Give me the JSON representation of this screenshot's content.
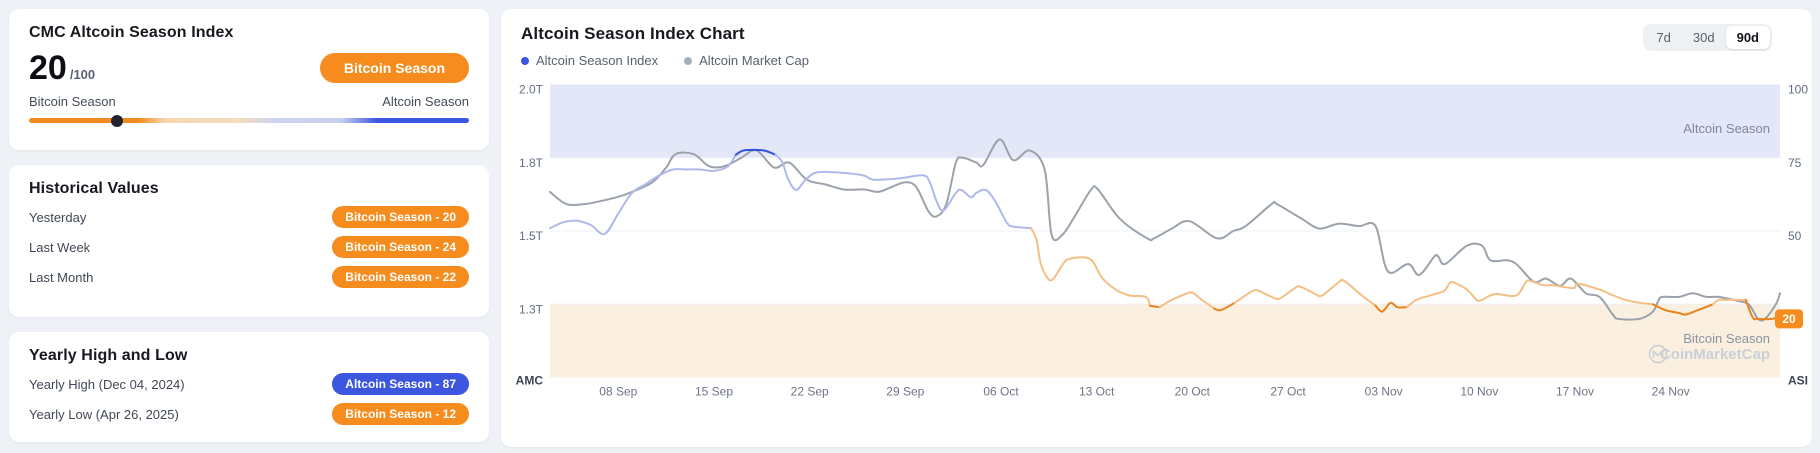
{
  "index_card": {
    "title": "CMC Altcoin Season Index",
    "score": "20",
    "score_max": "/100",
    "season_badge": "Bitcoin Season",
    "left_label": "Bitcoin Season",
    "right_label": "Altcoin Season",
    "slider_value": 20
  },
  "historical_card": {
    "title": "Historical Values",
    "rows": [
      {
        "label": "Yesterday",
        "badge": "Bitcoin Season - 20",
        "type": "bitcoin"
      },
      {
        "label": "Last Week",
        "badge": "Bitcoin Season - 24",
        "type": "bitcoin"
      },
      {
        "label": "Last Month",
        "badge": "Bitcoin Season - 22",
        "type": "bitcoin"
      }
    ]
  },
  "yearly_card": {
    "title": "Yearly High and Low",
    "rows": [
      {
        "label": "Yearly High (Dec 04, 2024)",
        "badge": "Altcoin Season - 87",
        "type": "altcoin"
      },
      {
        "label": "Yearly Low (Apr 26, 2025)",
        "badge": "Bitcoin Season - 12",
        "type": "bitcoin"
      }
    ]
  },
  "chart_card": {
    "title": "Altcoin Season Index Chart",
    "legend": [
      {
        "label": "Altcoin Season Index",
        "color": "#3A56DE"
      },
      {
        "label": "Altcoin Market Cap",
        "color": "#A5AFBC"
      }
    ],
    "ranges": [
      {
        "label": "7d",
        "active": false
      },
      {
        "label": "30d",
        "active": false
      },
      {
        "label": "90d",
        "active": true
      }
    ]
  },
  "chart_data": {
    "type": "line",
    "title": "Altcoin Season Index Chart",
    "x_ticks": [
      "08 Sep",
      "15 Sep",
      "22 Sep",
      "29 Sep",
      "06 Oct",
      "13 Oct",
      "20 Oct",
      "27 Oct",
      "03 Nov",
      "10 Nov",
      "17 Nov",
      "24 Nov"
    ],
    "x_tick_days": [
      5,
      12,
      19,
      26,
      33,
      40,
      47,
      54,
      61,
      68,
      75,
      82
    ],
    "x_range_days": [
      0,
      90
    ],
    "left_axis": {
      "name": "AMC",
      "ticks": [
        {
          "label": "2.0T",
          "amc": 2.0
        },
        {
          "label": "1.8T",
          "amc": 1.8
        },
        {
          "label": "1.5T",
          "amc": 1.5
        },
        {
          "label": "1.3T",
          "amc": 1.3
        }
      ]
    },
    "right_axis": {
      "name": "ASI",
      "ticks": [
        100,
        75,
        50
      ],
      "ylim": [
        0,
        100
      ],
      "current": {
        "label": "20",
        "value": 20,
        "color": "#F68C1E"
      }
    },
    "bands": [
      {
        "label": "Altcoin Season",
        "from": 75,
        "to": 100,
        "color": "#E4E7F8",
        "label_color": "#7E8799"
      },
      {
        "label": "Bitcoin Season",
        "from": 0,
        "to": 25,
        "color": "#FBF0E0",
        "label_color": "#8A93A3"
      }
    ],
    "grid_levels": [
      75,
      50,
      25
    ],
    "watermark": {
      "brand": "CoinMarketCap",
      "color": "#C9CED7"
    },
    "series": [
      {
        "name": "Altcoin Season Index",
        "axis": "right",
        "colors": {
          "altseason": "#2E52DE",
          "neutral_high": "#AEB9EB",
          "neutral_low": "#F4BF85",
          "btcseason": "#E8821A"
        },
        "points": [
          [
            0,
            51
          ],
          [
            1,
            53
          ],
          [
            2,
            53.5
          ],
          [
            3,
            52
          ],
          [
            4,
            49
          ],
          [
            5,
            56
          ],
          [
            6,
            63
          ],
          [
            7,
            66
          ],
          [
            8,
            69
          ],
          [
            9,
            71
          ],
          [
            10,
            71
          ],
          [
            11,
            71
          ],
          [
            12,
            70.5
          ],
          [
            13,
            72
          ],
          [
            13.6,
            76
          ],
          [
            14.2,
            77.5
          ],
          [
            15.6,
            77.5
          ],
          [
            16.5,
            76
          ],
          [
            17,
            73.5
          ],
          [
            17.4,
            68
          ],
          [
            18,
            64
          ],
          [
            18.7,
            67.5
          ],
          [
            19.5,
            70
          ],
          [
            21,
            70
          ],
          [
            22.9,
            69
          ],
          [
            23.7,
            67.5
          ],
          [
            25.6,
            68
          ],
          [
            27.3,
            69
          ],
          [
            27.8,
            66.5
          ],
          [
            28.3,
            60
          ],
          [
            28.8,
            57
          ],
          [
            29.7,
            63
          ],
          [
            30.1,
            64
          ],
          [
            30.8,
            61.5
          ],
          [
            31.2,
            63
          ],
          [
            31.9,
            64
          ],
          [
            32.6,
            60
          ],
          [
            33.4,
            53
          ],
          [
            33.9,
            51.5
          ],
          [
            35.2,
            51
          ],
          [
            35.6,
            47
          ],
          [
            35.9,
            39
          ],
          [
            36.4,
            34
          ],
          [
            36.8,
            33.5
          ],
          [
            37.5,
            38.5
          ],
          [
            38,
            40.5
          ],
          [
            39.5,
            40.5
          ],
          [
            40.4,
            34
          ],
          [
            41.4,
            30
          ],
          [
            42.4,
            28
          ],
          [
            43.6,
            27.5
          ],
          [
            43.9,
            24.5
          ],
          [
            44.6,
            24
          ],
          [
            45.5,
            26.5
          ],
          [
            46.5,
            28.5
          ],
          [
            47,
            29
          ],
          [
            47.7,
            26.5
          ],
          [
            48.6,
            23.5
          ],
          [
            49.1,
            23
          ],
          [
            50.1,
            25.5
          ],
          [
            51.4,
            29.5
          ],
          [
            51.9,
            29.5
          ],
          [
            52.8,
            27.5
          ],
          [
            53.4,
            27
          ],
          [
            54.5,
            30.5
          ],
          [
            54.9,
            31
          ],
          [
            56,
            28.5
          ],
          [
            56.5,
            28
          ],
          [
            57.7,
            32.5
          ],
          [
            58.1,
            33
          ],
          [
            59.4,
            28
          ],
          [
            60.4,
            24.5
          ],
          [
            60.9,
            22.5
          ],
          [
            61.5,
            25.5
          ],
          [
            62,
            24
          ],
          [
            62.7,
            24
          ],
          [
            63.4,
            26.5
          ],
          [
            64.4,
            28
          ],
          [
            65.4,
            29.5
          ],
          [
            65.8,
            32
          ],
          [
            66.1,
            32.5
          ],
          [
            67.1,
            30
          ],
          [
            67.8,
            26.5
          ],
          [
            68.2,
            26.5
          ],
          [
            68.8,
            28
          ],
          [
            69.3,
            28.5
          ],
          [
            70.7,
            28
          ],
          [
            71.4,
            32.5
          ],
          [
            71.7,
            33
          ],
          [
            72.7,
            31.5
          ],
          [
            73.4,
            31.5
          ],
          [
            74.9,
            30.5
          ],
          [
            75.2,
            32
          ],
          [
            76.8,
            30
          ],
          [
            77.8,
            28
          ],
          [
            78.7,
            26.5
          ],
          [
            79.7,
            25.5
          ],
          [
            80.7,
            25
          ],
          [
            81.6,
            23
          ],
          [
            82.6,
            22
          ],
          [
            83.1,
            21.5
          ],
          [
            84,
            23
          ],
          [
            85.1,
            25
          ],
          [
            85.5,
            26.5
          ],
          [
            86,
            26.5
          ],
          [
            87.5,
            26.5
          ],
          [
            88,
            20.5
          ],
          [
            88.4,
            20
          ],
          [
            89.4,
            20
          ],
          [
            90,
            21
          ]
        ]
      },
      {
        "name": "Altcoin Market Cap",
        "axis": "left",
        "color": "#9BA2AC",
        "points": [
          [
            0,
            1.66
          ],
          [
            1.2,
            1.61
          ],
          [
            2.5,
            1.61
          ],
          [
            3.5,
            1.62
          ],
          [
            5,
            1.64
          ],
          [
            6,
            1.66
          ],
          [
            7.5,
            1.7
          ],
          [
            8.5,
            1.76
          ],
          [
            9.2,
            1.81
          ],
          [
            10.5,
            1.81
          ],
          [
            11.5,
            1.77
          ],
          [
            12.2,
            1.76
          ],
          [
            13,
            1.77
          ],
          [
            14,
            1.8
          ],
          [
            15.1,
            1.82
          ],
          [
            16.4,
            1.76
          ],
          [
            17.5,
            1.78
          ],
          [
            18.8,
            1.71
          ],
          [
            20.2,
            1.69
          ],
          [
            21.5,
            1.67
          ],
          [
            23,
            1.67
          ],
          [
            24,
            1.66
          ],
          [
            25,
            1.68
          ],
          [
            26,
            1.7
          ],
          [
            26.8,
            1.68
          ],
          [
            27.7,
            1.58
          ],
          [
            28.3,
            1.56
          ],
          [
            29,
            1.61
          ],
          [
            29.7,
            1.78
          ],
          [
            30.2,
            1.8
          ],
          [
            31.2,
            1.78
          ],
          [
            31.7,
            1.77
          ],
          [
            32.9,
            1.85
          ],
          [
            33.9,
            1.79
          ],
          [
            35.1,
            1.82
          ],
          [
            36.2,
            1.75
          ],
          [
            36.7,
            1.49
          ],
          [
            37.5,
            1.49
          ],
          [
            38.5,
            1.57
          ],
          [
            39.6,
            1.67
          ],
          [
            40.1,
            1.67
          ],
          [
            41.7,
            1.55
          ],
          [
            43.7,
            1.48
          ],
          [
            44.2,
            1.48
          ],
          [
            45.5,
            1.51
          ],
          [
            46.8,
            1.54
          ],
          [
            48.8,
            1.48
          ],
          [
            50,
            1.5
          ],
          [
            50.9,
            1.52
          ],
          [
            52.8,
            1.61
          ],
          [
            53.2,
            1.61
          ],
          [
            55,
            1.55
          ],
          [
            56.3,
            1.51
          ],
          [
            57.7,
            1.53
          ],
          [
            59.2,
            1.52
          ],
          [
            60.4,
            1.52
          ],
          [
            61.3,
            1.39
          ],
          [
            62.8,
            1.41
          ],
          [
            63.6,
            1.38
          ],
          [
            64.7,
            1.43
          ],
          [
            65,
            1.43
          ],
          [
            65.5,
            1.41
          ],
          [
            67.1,
            1.46
          ],
          [
            68.2,
            1.46
          ],
          [
            68.8,
            1.42
          ],
          [
            70,
            1.42
          ],
          [
            70.7,
            1.41
          ],
          [
            71.7,
            1.37
          ],
          [
            72.2,
            1.36
          ],
          [
            72.9,
            1.37
          ],
          [
            73.9,
            1.35
          ],
          [
            74.7,
            1.37
          ],
          [
            75.8,
            1.33
          ],
          [
            76.8,
            1.32
          ],
          [
            77.8,
            1.27
          ],
          [
            78.2,
            1.26
          ],
          [
            79.7,
            1.26
          ],
          [
            80.7,
            1.28
          ],
          [
            81.1,
            1.31
          ],
          [
            81.4,
            1.32
          ],
          [
            82.6,
            1.32
          ],
          [
            83.6,
            1.33
          ],
          [
            84.6,
            1.32
          ],
          [
            85.5,
            1.32
          ],
          [
            86.8,
            1.31
          ],
          [
            87.7,
            1.3
          ],
          [
            88.4,
            1.26
          ],
          [
            88.9,
            1.26
          ],
          [
            89.7,
            1.3
          ],
          [
            90,
            1.33
          ]
        ]
      }
    ]
  }
}
